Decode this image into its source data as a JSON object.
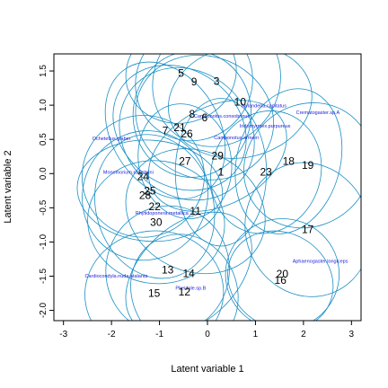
{
  "chart_data": {
    "type": "scatter",
    "title": "",
    "xlabel": "Latent variable 1",
    "ylabel": "Latent variable 2",
    "xlim": [
      -3.2,
      3.2
    ],
    "ylim": [
      -2.15,
      1.75
    ],
    "xticks": [
      -3,
      -2,
      -1,
      0,
      1,
      2,
      3
    ],
    "yticks": [
      -2.0,
      -1.5,
      -1.0,
      -0.5,
      0.0,
      0.5,
      1.0,
      1.5
    ],
    "ytick_labels": [
      "-2.0",
      "-1.5",
      "-1.0",
      "-0.5",
      "0.0",
      "0.5",
      "1.0",
      "1.5"
    ],
    "colors": {
      "ellipse": "#1a8fc4",
      "species_text": "#2020e0",
      "site_text": "#000000"
    },
    "sites": [
      {
        "label": "1",
        "x": 0.28,
        "y": 0.02
      },
      {
        "label": "3",
        "x": 0.19,
        "y": 1.35
      },
      {
        "label": "5",
        "x": -0.55,
        "y": 1.47
      },
      {
        "label": "6",
        "x": -0.06,
        "y": 0.82
      },
      {
        "label": "7",
        "x": -0.88,
        "y": 0.63
      },
      {
        "label": "8",
        "x": -0.32,
        "y": 0.87
      },
      {
        "label": "9",
        "x": -0.28,
        "y": 1.34
      },
      {
        "label": "10",
        "x": 0.68,
        "y": 1.05
      },
      {
        "label": "11",
        "x": -0.25,
        "y": -0.55
      },
      {
        "label": "12",
        "x": -0.48,
        "y": -1.73
      },
      {
        "label": "13",
        "x": -0.83,
        "y": -1.41
      },
      {
        "label": "14",
        "x": -0.39,
        "y": -1.46
      },
      {
        "label": "15",
        "x": -1.11,
        "y": -1.75
      },
      {
        "label": "16",
        "x": 1.52,
        "y": -1.56
      },
      {
        "label": "17",
        "x": 2.09,
        "y": -0.82
      },
      {
        "label": "18",
        "x": 1.69,
        "y": 0.18
      },
      {
        "label": "19",
        "x": 2.09,
        "y": 0.12
      },
      {
        "label": "20",
        "x": 1.56,
        "y": -1.47
      },
      {
        "label": "21",
        "x": -0.58,
        "y": 0.67
      },
      {
        "label": "22",
        "x": -1.1,
        "y": -0.48
      },
      {
        "label": "23",
        "x": 1.22,
        "y": 0.02
      },
      {
        "label": "24",
        "x": -1.34,
        "y": -0.04
      },
      {
        "label": "25",
        "x": -1.2,
        "y": -0.25
      },
      {
        "label": "26",
        "x": -0.43,
        "y": 0.58
      },
      {
        "label": "27",
        "x": -0.47,
        "y": 0.18
      },
      {
        "label": "28",
        "x": -1.3,
        "y": -0.32
      },
      {
        "label": "29",
        "x": 0.21,
        "y": 0.26
      },
      {
        "label": "30",
        "x": -1.07,
        "y": -0.71
      }
    ],
    "species": [
      {
        "label": "Nylanderia.capitatus",
        "x": 1.18,
        "y": 0.97
      },
      {
        "label": "Crematogaster.sp.A",
        "x": 2.3,
        "y": 0.87
      },
      {
        "label": "Iridomyrmex.purpureus",
        "x": 1.2,
        "y": 0.67
      },
      {
        "label": "Camponotus.consobrinus",
        "x": 0.3,
        "y": 0.82
      },
      {
        "label": "Camponotus.armeiri",
        "x": 0.6,
        "y": 0.5
      },
      {
        "label": "Ochetellus.glaber",
        "x": -2.0,
        "y": 0.49
      },
      {
        "label": "Monomorium.rothsteini",
        "x": -1.65,
        "y": 0.0
      },
      {
        "label": "Rhytidoponera.metallica",
        "x": -0.95,
        "y": -0.6
      },
      {
        "label": "Aphaenogaster.longiceps",
        "x": 2.35,
        "y": -1.3
      },
      {
        "label": "Cardiocondyla.nuda.atalanta",
        "x": -1.9,
        "y": -1.52
      },
      {
        "label": "Pheidole.sp.B",
        "x": -0.35,
        "y": -1.7
      }
    ]
  }
}
